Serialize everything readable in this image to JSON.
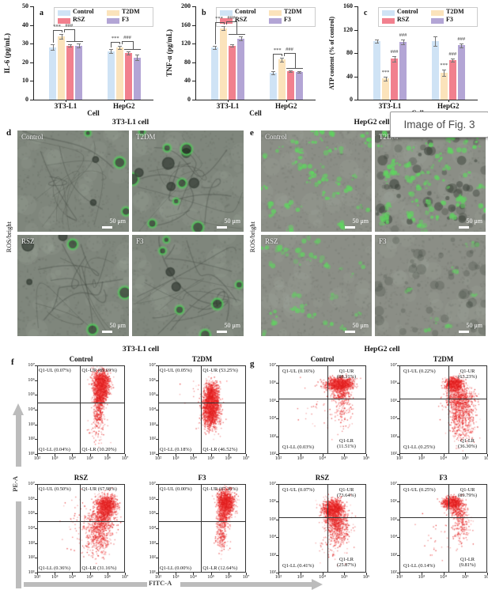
{
  "figure": {
    "overlay_caption": "Image of Fig. 3",
    "flow_axes": {
      "x": "FITC-A",
      "y": "PE-A"
    }
  },
  "palette": {
    "control": "#cfe3f5",
    "t2dm": "#fbe3bb",
    "rsz": "#f1808e",
    "f3": "#b3a5d5",
    "scatter_dots": "#e11f1f",
    "axis_arrow": "#bcbcbc",
    "ros_green": "#4ec44e",
    "sig_text": "#666666"
  },
  "legend_items": [
    {
      "label": "Control",
      "color": "#cfe3f5"
    },
    {
      "label": "T2DM",
      "color": "#fbe3bb"
    },
    {
      "label": "RSZ",
      "color": "#f1808e"
    },
    {
      "label": "F3",
      "color": "#b3a5d5"
    }
  ],
  "chart_data": [
    {
      "panel": "a",
      "type": "bar",
      "ylabel": "IL-6 (pg/mL)",
      "xlabel": "Cell",
      "ylim": [
        0,
        50
      ],
      "yticks": [
        0,
        10,
        20,
        30,
        40,
        50
      ],
      "categories": [
        "3T3-L1",
        "HepG2"
      ],
      "series": [
        {
          "name": "Control",
          "color": "#cfe3f5",
          "values": [
            28,
            26
          ],
          "errors": [
            1.5,
            1.0
          ]
        },
        {
          "name": "T2DM",
          "color": "#fbe3bb",
          "values": [
            34,
            28
          ],
          "errors": [
            1.2,
            1.0
          ]
        },
        {
          "name": "RSZ",
          "color": "#f1808e",
          "values": [
            29,
            25
          ],
          "errors": [
            0.8,
            1.0
          ]
        },
        {
          "name": "F3",
          "color": "#b3a5d5",
          "values": [
            29,
            22.5
          ],
          "errors": [
            1.0,
            1.5
          ]
        }
      ],
      "significance": {
        "style": "brackets",
        "labels": [
          "***",
          "###"
        ]
      }
    },
    {
      "panel": "b",
      "type": "bar",
      "ylabel": "TNF-α (pg/mL)",
      "xlabel": "Cell",
      "ylim": [
        0,
        200
      ],
      "yticks": [
        0,
        40,
        80,
        120,
        160,
        200
      ],
      "categories": [
        "3T3-L1",
        "HepG2"
      ],
      "series": [
        {
          "name": "Control",
          "color": "#cfe3f5",
          "values": [
            112,
            58
          ],
          "errors": [
            3,
            3
          ]
        },
        {
          "name": "T2DM",
          "color": "#fbe3bb",
          "values": [
            153,
            86
          ],
          "errors": [
            4,
            4
          ]
        },
        {
          "name": "RSZ",
          "color": "#f1808e",
          "values": [
            116,
            61
          ],
          "errors": [
            3,
            2
          ]
        },
        {
          "name": "F3",
          "color": "#b3a5d5",
          "values": [
            131,
            59
          ],
          "errors": [
            4,
            2
          ]
        }
      ],
      "significance": {
        "style": "brackets",
        "labels": [
          "***",
          "###"
        ]
      }
    },
    {
      "panel": "c",
      "type": "bar",
      "ylabel": "ATP content (% of control)",
      "xlabel": "Cell",
      "ylim": [
        0,
        160
      ],
      "yticks": [
        0,
        40,
        80,
        120,
        160
      ],
      "categories": [
        "3T3-L1",
        "HepG2"
      ],
      "series": [
        {
          "name": "Control",
          "color": "#cfe3f5",
          "values": [
            100,
            100
          ],
          "errors": [
            3,
            8
          ]
        },
        {
          "name": "T2DM",
          "color": "#fbe3bb",
          "values": [
            36,
            46
          ],
          "errors": [
            4,
            5
          ]
        },
        {
          "name": "RSZ",
          "color": "#f1808e",
          "values": [
            70,
            68
          ],
          "errors": [
            5,
            3
          ]
        },
        {
          "name": "F3",
          "color": "#b3a5d5",
          "values": [
            99,
            93
          ],
          "errors": [
            4,
            3
          ]
        }
      ],
      "significance": {
        "style": "above",
        "marks": [
          [
            null,
            "***",
            "###",
            "###"
          ],
          [
            null,
            "***",
            "###",
            "###"
          ]
        ]
      }
    },
    {
      "panel": "f",
      "type": "scatter-grid",
      "title": "3T3-L1 cell",
      "xlabel": "FITC-A",
      "ylabel": "PE-A",
      "x_tick_labels": [
        "10²",
        "10³",
        "10⁴",
        "10⁵",
        "10⁶",
        "10⁷"
      ],
      "y_tick_labels": [
        "10⁷",
        "10⁶",
        "10⁵",
        "10⁴",
        "10³",
        "10²",
        "10¹"
      ],
      "divider": {
        "x": 0.49,
        "y": 0.42
      },
      "plots": [
        {
          "title": "Control",
          "quadrants": {
            "UL": [
              "Q1-UL (0.07%)"
            ],
            "UR": [
              "Q1-UR (89.69%)"
            ],
            "LL": [
              "Q1-LL (0.04%)"
            ],
            "LR": [
              "Q1-LR (10.20%)"
            ]
          },
          "clusters": [
            {
              "x": 0.73,
              "y": 0.8,
              "sx": 0.045,
              "sy": 0.075,
              "n": 1500
            },
            {
              "x": 0.71,
              "y": 0.63,
              "sx": 0.035,
              "sy": 0.05,
              "n": 350
            },
            {
              "x": 0.7,
              "y": 0.47,
              "sx": 0.03,
              "sy": 0.08,
              "n": 220
            },
            {
              "x": 0.68,
              "y": 0.28,
              "sx": 0.05,
              "sy": 0.08,
              "n": 60
            }
          ]
        },
        {
          "title": "T2DM",
          "quadrants": {
            "UL": [
              "Q1-UL (0.05%)"
            ],
            "UR": [
              "Q1-UR (53.25%)"
            ],
            "LL": [
              "Q1-LL (0.18%)"
            ],
            "LR": [
              "Q1-LR (46.52%)"
            ]
          },
          "clusters": [
            {
              "x": 0.6,
              "y": 0.58,
              "sx": 0.045,
              "sy": 0.09,
              "n": 1500
            },
            {
              "x": 0.6,
              "y": 0.42,
              "sx": 0.05,
              "sy": 0.08,
              "n": 600
            },
            {
              "x": 0.61,
              "y": 0.73,
              "sx": 0.04,
              "sy": 0.05,
              "n": 250
            },
            {
              "x": 0.45,
              "y": 0.8,
              "sx": 0.15,
              "sy": 0.08,
              "n": 15
            }
          ]
        },
        {
          "title": "RSZ",
          "quadrants": {
            "UL": [
              "Q1-UL (0.50%)"
            ],
            "UR": [
              "Q1-UR (67.98%)"
            ],
            "LL": [
              "Q1-LL (0.36%)"
            ],
            "LR": [
              "Q1-LR (31.16%)"
            ]
          },
          "clusters": [
            {
              "x": 0.79,
              "y": 0.76,
              "sx": 0.055,
              "sy": 0.06,
              "n": 1200
            },
            {
              "x": 0.73,
              "y": 0.6,
              "sx": 0.07,
              "sy": 0.07,
              "n": 450
            },
            {
              "x": 0.7,
              "y": 0.4,
              "sx": 0.07,
              "sy": 0.1,
              "n": 400
            },
            {
              "x": 0.55,
              "y": 0.55,
              "sx": 0.13,
              "sy": 0.18,
              "n": 100
            }
          ]
        },
        {
          "title": "F3",
          "quadrants": {
            "UL": [
              "Q1-UL (0.00%)"
            ],
            "UR": [
              "Q1-UR (87.36%)"
            ],
            "LL": [
              "Q1-LL (0.00%)"
            ],
            "LR": [
              "Q1-LR (12.64%)"
            ]
          },
          "clusters": [
            {
              "x": 0.77,
              "y": 0.8,
              "sx": 0.045,
              "sy": 0.07,
              "n": 1400
            },
            {
              "x": 0.74,
              "y": 0.62,
              "sx": 0.035,
              "sy": 0.05,
              "n": 250
            },
            {
              "x": 0.72,
              "y": 0.42,
              "sx": 0.035,
              "sy": 0.09,
              "n": 180
            }
          ]
        }
      ]
    },
    {
      "panel": "g",
      "type": "scatter-grid",
      "title": "HepG2 cell",
      "xlabel": "FITC-A",
      "ylabel": "PE-A",
      "x_tick_labels": [
        "10²",
        "10³",
        "10⁴",
        "10⁵",
        "10⁶"
      ],
      "y_tick_labels": [
        "10⁷",
        "10⁶",
        "10⁵",
        "10⁴",
        "10³",
        "10²"
      ],
      "divider": {
        "x": 0.56,
        "y": 0.37
      },
      "plots": [
        {
          "title": "Control",
          "quadrants": {
            "UL": [
              "Q1-UL (0.16%)"
            ],
            "UR": [
              "Q1-UR",
              "(88.31%)"
            ],
            "LL": [
              "Q1-LL (0.03%)"
            ],
            "LR": [
              "Q1-LR",
              "(11.51%)"
            ]
          },
          "clusters": [
            {
              "x": 0.7,
              "y": 0.8,
              "sx": 0.075,
              "sy": 0.035,
              "n": 1300
            },
            {
              "x": 0.72,
              "y": 0.68,
              "sx": 0.06,
              "sy": 0.05,
              "n": 220
            },
            {
              "x": 0.74,
              "y": 0.5,
              "sx": 0.06,
              "sy": 0.1,
              "n": 110
            },
            {
              "x": 0.45,
              "y": 0.55,
              "sx": 0.13,
              "sy": 0.15,
              "n": 35
            }
          ]
        },
        {
          "title": "T2DM",
          "quadrants": {
            "UL": [
              "Q1-UL (0.22%)"
            ],
            "UR": [
              "Q1-UR",
              "(63.23%)"
            ],
            "LL": [
              "Q1-LL (0.25%)"
            ],
            "LR": [
              "Q1-LR",
              "(36.30%)"
            ]
          },
          "clusters": [
            {
              "x": 0.62,
              "y": 0.8,
              "sx": 0.05,
              "sy": 0.035,
              "n": 1000
            },
            {
              "x": 0.68,
              "y": 0.63,
              "sx": 0.08,
              "sy": 0.07,
              "n": 650
            },
            {
              "x": 0.7,
              "y": 0.44,
              "sx": 0.08,
              "sy": 0.1,
              "n": 420
            },
            {
              "x": 0.72,
              "y": 0.25,
              "sx": 0.08,
              "sy": 0.08,
              "n": 110
            }
          ]
        },
        {
          "title": "RSZ",
          "quadrants": {
            "UL": [
              "Q1-UL (0.07%)"
            ],
            "UR": [
              "Q1-UR",
              "(73.64%)"
            ],
            "LL": [
              "Q1-LL (0.41%)"
            ],
            "LR": [
              "Q1-LR",
              "(25.87%)"
            ]
          },
          "clusters": [
            {
              "x": 0.62,
              "y": 0.73,
              "sx": 0.06,
              "sy": 0.05,
              "n": 1150
            },
            {
              "x": 0.66,
              "y": 0.6,
              "sx": 0.07,
              "sy": 0.06,
              "n": 480
            },
            {
              "x": 0.68,
              "y": 0.46,
              "sx": 0.07,
              "sy": 0.08,
              "n": 260
            },
            {
              "x": 0.6,
              "y": 0.3,
              "sx": 0.1,
              "sy": 0.1,
              "n": 50
            }
          ]
        },
        {
          "title": "F3",
          "quadrants": {
            "UL": [
              "Q1-UL (0.25%)"
            ],
            "UR": [
              "Q1-UR",
              "(89.79%)"
            ],
            "LL": [
              "Q1-LL (0.14%)"
            ],
            "LR": [
              "Q1-LR",
              "(9.81%)"
            ]
          },
          "clusters": [
            {
              "x": 0.6,
              "y": 0.8,
              "sx": 0.05,
              "sy": 0.03,
              "n": 1000
            },
            {
              "x": 0.67,
              "y": 0.7,
              "sx": 0.05,
              "sy": 0.05,
              "n": 220
            },
            {
              "x": 0.7,
              "y": 0.52,
              "sx": 0.05,
              "sy": 0.1,
              "n": 160
            },
            {
              "x": 0.52,
              "y": 0.45,
              "sx": 0.15,
              "sy": 0.18,
              "n": 35
            }
          ]
        }
      ]
    }
  ],
  "microscopy": [
    {
      "panel": "d",
      "title": "3T3-L1 cell",
      "row_label": "ROS/bright",
      "images": [
        {
          "label": "Control",
          "scale_bar": "50 μm",
          "style": "rings",
          "count": 5
        },
        {
          "label": "T2DM",
          "scale_bar": "50 μm",
          "style": "rings",
          "count": 13
        },
        {
          "label": "RSZ",
          "scale_bar": "50 μm",
          "style": "rings",
          "count": 6
        },
        {
          "label": "F3",
          "scale_bar": "50 μm",
          "style": "rings",
          "count": 8
        }
      ]
    },
    {
      "panel": "e",
      "title": "HepG2 cell",
      "row_label": "ROS/bright",
      "images": [
        {
          "label": "Control",
          "scale_bar": "50 μm",
          "style": "patches",
          "count": 38
        },
        {
          "label": "T2DM",
          "scale_bar": "50 μm",
          "style": "patches-dense",
          "count": 60
        },
        {
          "label": "RSZ",
          "scale_bar": "50 μm",
          "style": "patches-sparse",
          "count": 26
        },
        {
          "label": "F3",
          "scale_bar": "50 μm",
          "style": "plain",
          "count": 8
        }
      ]
    }
  ]
}
